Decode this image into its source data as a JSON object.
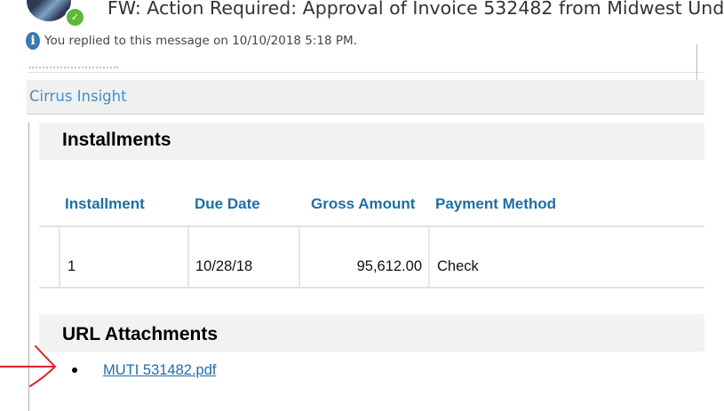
{
  "header": {
    "title": "FW: Action Required: Approval of Invoice 532482 from Midwest Und",
    "replied_info": "You replied to this message on 10/10/2018 5:18 PM.",
    "info_icon": "info-icon",
    "presence_status": "available",
    "presence_color": "#5fb83a"
  },
  "addin": {
    "label": "Cirrus Insight"
  },
  "installments": {
    "title": "Installments",
    "columns": [
      "Installment",
      "Due Date",
      "Gross Amount",
      "Payment Method"
    ],
    "rows": [
      [
        "1",
        "10/28/18",
        "95,612.00",
        "Check"
      ]
    ]
  },
  "attachments": {
    "title": "URL Attachments",
    "items": [
      {
        "label": "MUTI 531482.pdf"
      }
    ]
  },
  "annotation": {
    "type": "red-arrow",
    "color": "#e3202a"
  }
}
